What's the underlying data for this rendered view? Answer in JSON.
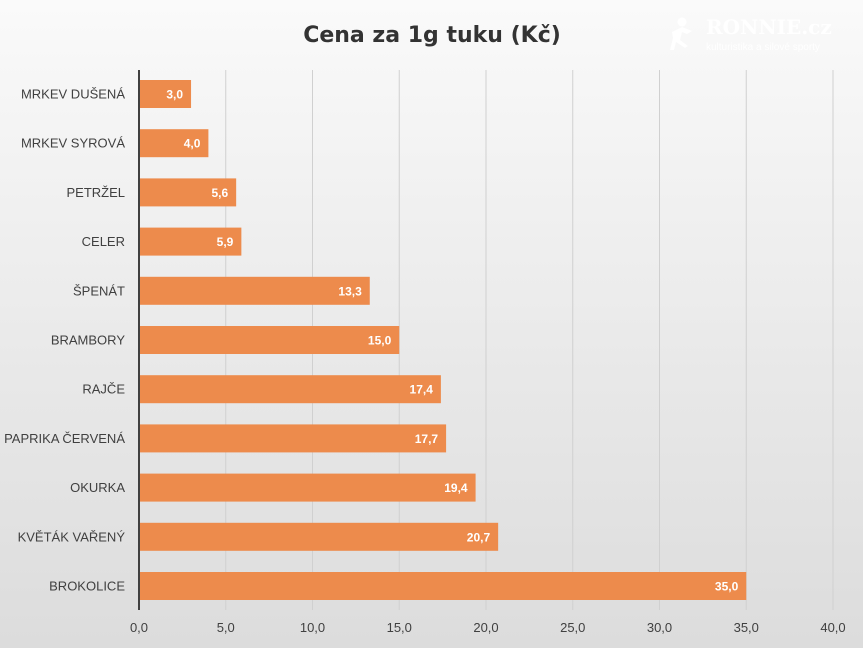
{
  "chart_data": {
    "type": "bar",
    "orientation": "horizontal",
    "title": "Cena za 1g tuku (Kč)",
    "categories": [
      "MRKEV DUŠENÁ",
      "MRKEV SYROVÁ",
      "PETRŽEL",
      "CELER",
      "ŠPENÁT",
      "BRAMBORY",
      "RAJČE",
      "PAPRIKA ČERVENÁ",
      "OKURKA",
      "KVĚTÁK VAŘENÝ",
      "BROKOLICE"
    ],
    "values": [
      3.0,
      4.0,
      5.6,
      5.9,
      13.3,
      15.0,
      17.4,
      17.7,
      19.4,
      20.7,
      35.0
    ],
    "value_labels": [
      "3,0",
      "4,0",
      "5,6",
      "5,9",
      "13,3",
      "15,0",
      "17,4",
      "17,7",
      "19,4",
      "20,7",
      "35,0"
    ],
    "xlim": [
      0,
      40
    ],
    "x_ticks": [
      0,
      5,
      10,
      15,
      20,
      25,
      30,
      35,
      40
    ],
    "x_tick_labels": [
      "0,0",
      "5,0",
      "10,0",
      "15,0",
      "20,0",
      "25,0",
      "30,0",
      "35,0",
      "40,0"
    ],
    "xlabel": "",
    "ylabel": "",
    "grid": true,
    "legend": false,
    "bar_color": "#ED8B4C",
    "grid_color": "#D0D0D0",
    "axis_color": "#404040"
  },
  "watermark": {
    "name": "RONNIE.cz",
    "tagline": "kulturistika a silové sporty",
    "icon": "runner-icon"
  }
}
